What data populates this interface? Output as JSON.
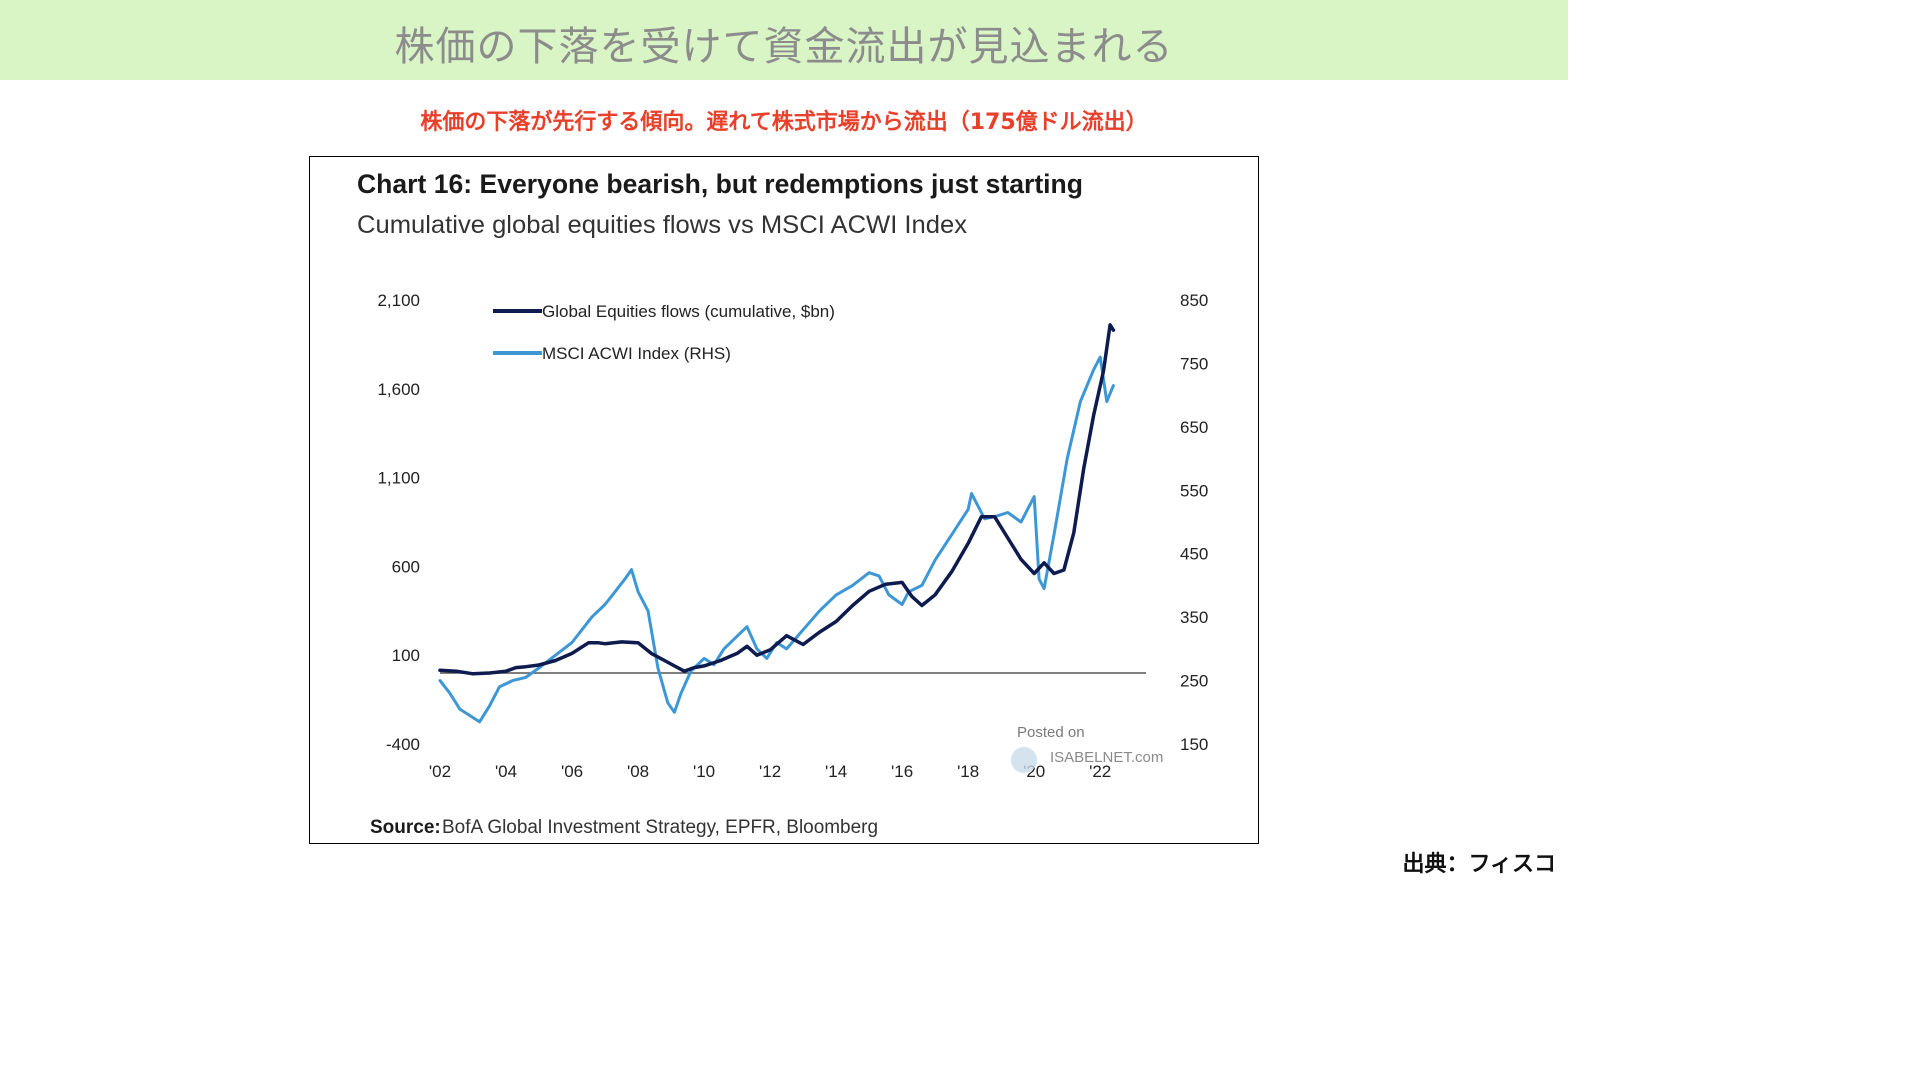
{
  "header": {
    "title": "株価の下落を受けて資金流出が見込まれる",
    "subtitle": "株価の下落が先行する傾向。遅れて株式市場から流出（175億ドル流出）"
  },
  "footer": {
    "credit": "出典：フィスコ"
  },
  "chart_data": {
    "type": "line",
    "title": "Chart 16: Everyone bearish, but redemptions just starting",
    "subtitle": "Cumulative global equities flows vs MSCI ACWI Index",
    "source_label": "Source:",
    "source_text": "BofA Global Investment Strategy, EPFR, Bloomberg",
    "watermark": [
      "Posted on",
      "ISABELNET.com"
    ],
    "x_tick_labels": [
      "'02",
      "'04",
      "'06",
      "'08",
      "'10",
      "'12",
      "'14",
      "'16",
      "'18",
      "'20",
      "'22"
    ],
    "x_ticks": [
      2002,
      2004,
      2006,
      2008,
      2010,
      2012,
      2014,
      2016,
      2018,
      2020,
      2022
    ],
    "xlim": [
      2002,
      2022.6
    ],
    "y_left": {
      "ticks": [
        2100,
        1600,
        1100,
        600,
        100,
        -400
      ],
      "labels": [
        "2,100",
        "1,600",
        "1,100",
        "600",
        "100",
        "-400"
      ],
      "lim": [
        -400,
        2100
      ]
    },
    "y_right": {
      "ticks": [
        850,
        750,
        650,
        550,
        450,
        350,
        250,
        150
      ],
      "labels": [
        "850",
        "750",
        "650",
        "550",
        "450",
        "350",
        "250",
        "150"
      ],
      "lim": [
        150,
        850
      ]
    },
    "reference_line": {
      "axis": "left",
      "value": 0
    },
    "grid": false,
    "legend_position": "top-left",
    "series": [
      {
        "name": "Global Equities flows (cumulative, $bn)",
        "axis": "left",
        "color": "#0d1b4f",
        "x": [
          2002.0,
          2002.5,
          2003.0,
          2003.5,
          2004.0,
          2004.3,
          2004.6,
          2005.0,
          2005.5,
          2006.0,
          2006.5,
          2006.8,
          2007.0,
          2007.5,
          2008.0,
          2008.4,
          2008.8,
          2009.1,
          2009.4,
          2009.7,
          2010.0,
          2010.5,
          2011.0,
          2011.3,
          2011.6,
          2012.0,
          2012.5,
          2013.0,
          2013.5,
          2014.0,
          2014.5,
          2015.0,
          2015.5,
          2016.0,
          2016.3,
          2016.6,
          2017.0,
          2017.5,
          2018.0,
          2018.4,
          2018.8,
          2019.2,
          2019.6,
          2020.0,
          2020.3,
          2020.6,
          2020.9,
          2021.2,
          2021.5,
          2021.8,
          2022.1,
          2022.3,
          2022.4
        ],
        "values": [
          15,
          10,
          -5,
          0,
          10,
          30,
          35,
          45,
          70,
          110,
          170,
          170,
          165,
          175,
          170,
          110,
          70,
          40,
          10,
          30,
          40,
          70,
          110,
          150,
          100,
          130,
          210,
          160,
          230,
          290,
          380,
          460,
          500,
          510,
          430,
          380,
          440,
          570,
          730,
          880,
          880,
          760,
          640,
          560,
          620,
          560,
          580,
          790,
          1150,
          1450,
          1700,
          1960,
          1930
        ]
      },
      {
        "name": "MSCI ACWI Index (RHS)",
        "axis": "right",
        "color": "#3d97d6",
        "x": [
          2002.0,
          2002.3,
          2002.6,
          2002.9,
          2003.2,
          2003.5,
          2003.8,
          2004.2,
          2004.6,
          2005.0,
          2005.5,
          2006.0,
          2006.3,
          2006.6,
          2007.0,
          2007.3,
          2007.6,
          2007.8,
          2008.0,
          2008.3,
          2008.6,
          2008.9,
          2009.1,
          2009.3,
          2009.6,
          2010.0,
          2010.3,
          2010.6,
          2011.0,
          2011.3,
          2011.6,
          2011.9,
          2012.2,
          2012.5,
          2013.0,
          2013.5,
          2014.0,
          2014.5,
          2015.0,
          2015.3,
          2015.6,
          2016.0,
          2016.2,
          2016.6,
          2017.0,
          2017.5,
          2018.0,
          2018.1,
          2018.5,
          2018.9,
          2019.2,
          2019.6,
          2020.0,
          2020.15,
          2020.3,
          2020.6,
          2021.0,
          2021.4,
          2021.8,
          2022.0,
          2022.2,
          2022.4
        ],
        "values": [
          250,
          230,
          205,
          195,
          185,
          210,
          240,
          250,
          255,
          270,
          290,
          310,
          330,
          350,
          370,
          390,
          410,
          425,
          390,
          360,
          270,
          215,
          200,
          230,
          265,
          285,
          275,
          300,
          320,
          335,
          300,
          285,
          310,
          300,
          330,
          360,
          385,
          400,
          420,
          415,
          385,
          370,
          390,
          400,
          440,
          480,
          520,
          545,
          505,
          510,
          515,
          500,
          540,
          410,
          395,
          480,
          600,
          690,
          740,
          760,
          690,
          715
        ]
      }
    ]
  }
}
